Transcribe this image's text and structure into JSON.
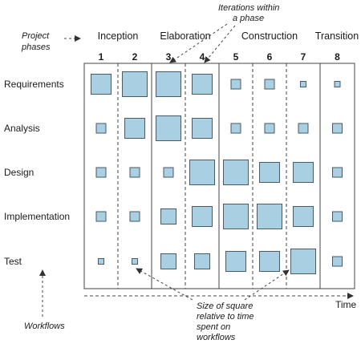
{
  "labels": {
    "project_phases": [
      "Project",
      "phases"
    ],
    "iterations_within_phase": [
      "Iterations within",
      "a phase"
    ],
    "workflows": "Workflows",
    "time": "Time",
    "size_note": [
      "Size of square",
      "relative to time",
      "spent on",
      "workflows"
    ]
  },
  "phases": [
    "Inception",
    "Elaboration",
    "Construction",
    "Transition"
  ],
  "iterations": [
    "1",
    "2",
    "3",
    "4",
    "5",
    "6",
    "7",
    "8"
  ],
  "workflows": [
    "Requirements",
    "Analysis",
    "Design",
    "Implementation",
    "Test"
  ],
  "square_size_levels": [
    [
      3,
      4,
      4,
      3,
      1,
      1,
      0,
      0
    ],
    [
      1,
      3,
      4,
      3,
      1,
      1,
      1,
      1
    ],
    [
      1,
      1,
      1,
      4,
      4,
      3,
      3,
      1
    ],
    [
      1,
      1,
      2,
      3,
      4,
      4,
      3,
      1
    ],
    [
      0,
      0,
      2,
      2,
      3,
      3,
      4,
      1
    ]
  ],
  "colors": {
    "square_fill": "#a9cfe3",
    "square_stroke": "#4a5a66",
    "line": "#444444"
  }
}
